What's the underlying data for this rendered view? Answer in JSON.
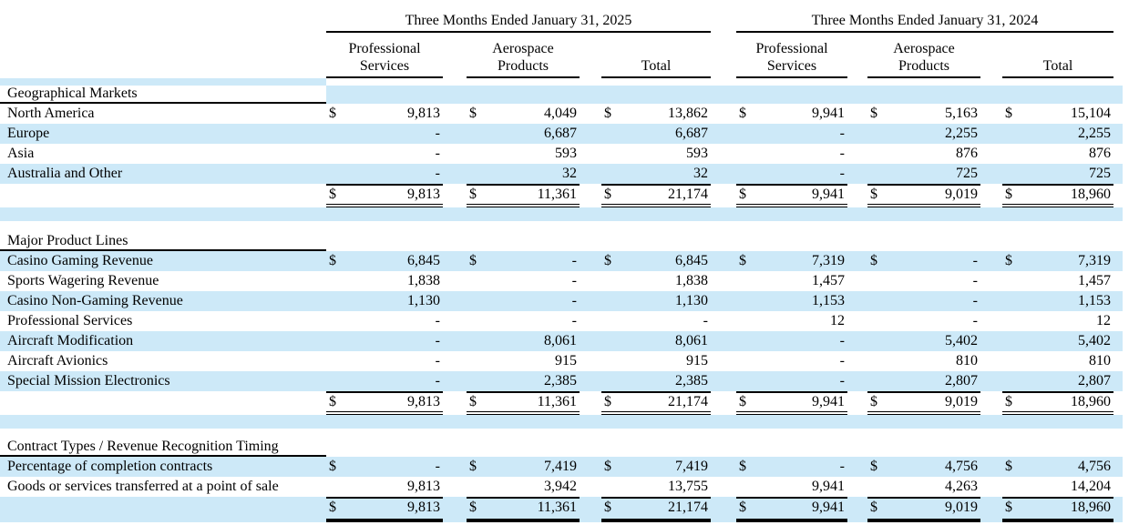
{
  "page": {
    "background_color": "#ffffff",
    "accent_row_color": "#cde9f8",
    "text_color": "#000000",
    "border_color": "#000000"
  },
  "table": {
    "column_groups": [
      {
        "title": "Three Months Ended January 31, 2025",
        "columns": [
          "Professional Services",
          "Aerospace Products",
          "Total"
        ]
      },
      {
        "title": "Three Months Ended January 31, 2024",
        "columns": [
          "Professional Services",
          "Aerospace Products",
          "Total"
        ]
      }
    ],
    "rows": [
      {
        "type": "stripe",
        "height": 8
      },
      {
        "type": "section",
        "label": "Geographical Markets",
        "numeric_shaded": true
      },
      {
        "type": "data",
        "label": "North America",
        "shaded": false,
        "dollar": true,
        "values": [
          "9,813",
          "4,049",
          "13,862",
          "9,941",
          "5,163",
          "15,104"
        ]
      },
      {
        "type": "data",
        "label": "Europe",
        "shaded": true,
        "dollar": false,
        "values": [
          "-",
          "6,687",
          "6,687",
          "-",
          "2,255",
          "2,255"
        ]
      },
      {
        "type": "data",
        "label": "Asia",
        "shaded": false,
        "dollar": false,
        "values": [
          "-",
          "593",
          "593",
          "-",
          "876",
          "876"
        ]
      },
      {
        "type": "data",
        "label": "Australia and Other",
        "shaded": true,
        "dollar": false,
        "values": [
          "-",
          "32",
          "32",
          "-",
          "725",
          "725"
        ]
      },
      {
        "type": "total",
        "label": "",
        "shaded": false,
        "dollar": true,
        "underline": "double",
        "values": [
          "9,813",
          "11,361",
          "21,174",
          "9,941",
          "9,019",
          "18,960"
        ]
      },
      {
        "type": "spacer",
        "shaded": true,
        "height": 15
      },
      {
        "type": "spacer",
        "shaded": false,
        "height": 13
      },
      {
        "type": "section",
        "label": "Major Product Lines",
        "numeric_shaded": false
      },
      {
        "type": "data",
        "label": "Casino Gaming Revenue",
        "shaded": true,
        "dollar": true,
        "values": [
          "6,845",
          "-",
          "6,845",
          "7,319",
          "-",
          "7,319"
        ]
      },
      {
        "type": "data",
        "label": "Sports Wagering Revenue",
        "shaded": false,
        "dollar": false,
        "values": [
          "1,838",
          "-",
          "1,838",
          "1,457",
          "-",
          "1,457"
        ]
      },
      {
        "type": "data",
        "label": "Casino Non-Gaming Revenue",
        "shaded": true,
        "dollar": false,
        "values": [
          "1,130",
          "-",
          "1,130",
          "1,153",
          "-",
          "1,153"
        ]
      },
      {
        "type": "data",
        "label": "Professional Services",
        "shaded": false,
        "dollar": false,
        "values": [
          "-",
          "-",
          "-",
          "12",
          "-",
          "12"
        ]
      },
      {
        "type": "data",
        "label": "Aircraft Modification",
        "shaded": true,
        "dollar": false,
        "values": [
          "-",
          "8,061",
          "8,061",
          "-",
          "5,402",
          "5,402"
        ]
      },
      {
        "type": "data",
        "label": "Aircraft Avionics",
        "shaded": false,
        "dollar": false,
        "values": [
          "-",
          "915",
          "915",
          "-",
          "810",
          "810"
        ]
      },
      {
        "type": "data",
        "label": "Special Mission Electronics",
        "shaded": true,
        "dollar": false,
        "values": [
          "-",
          "2,385",
          "2,385",
          "-",
          "2,807",
          "2,807"
        ]
      },
      {
        "type": "total",
        "label": "",
        "shaded": false,
        "dollar": true,
        "underline": "double",
        "values": [
          "9,813",
          "11,361",
          "21,174",
          "9,941",
          "9,019",
          "18,960"
        ]
      },
      {
        "type": "spacer",
        "shaded": true,
        "height": 15
      },
      {
        "type": "spacer",
        "shaded": false,
        "height": 11
      },
      {
        "type": "section",
        "label": "Contract Types / Revenue Recognition Timing",
        "numeric_shaded": false
      },
      {
        "type": "data",
        "label": "Percentage of completion contracts",
        "shaded": true,
        "dollar": true,
        "values": [
          "-",
          "7,419",
          "7,419",
          "-",
          "4,756",
          "4,756"
        ]
      },
      {
        "type": "data",
        "label": "Goods or services transferred at a point of sale",
        "shaded": false,
        "dollar": false,
        "values": [
          "9,813",
          "3,942",
          "13,755",
          "9,941",
          "4,263",
          "14,204"
        ]
      },
      {
        "type": "total",
        "label": "",
        "shaded": true,
        "dollar": true,
        "underline": "thick",
        "values": [
          "9,813",
          "11,361",
          "21,174",
          "9,941",
          "9,019",
          "18,960"
        ]
      }
    ]
  }
}
